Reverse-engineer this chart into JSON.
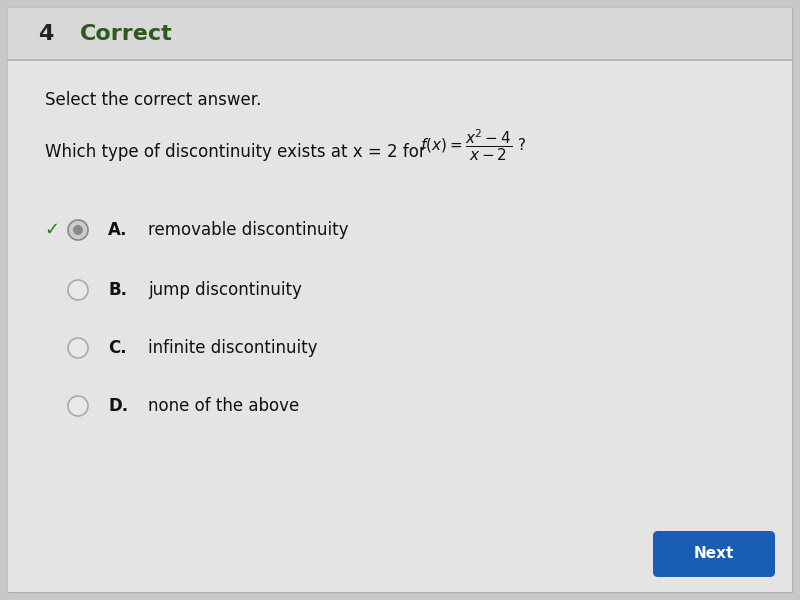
{
  "bg_outer": "#c8c8c8",
  "bg_header": "#d4d4d4",
  "bg_content": "#e2e2e2",
  "header_num": "4",
  "header_num_color": "#222222",
  "header_num_fontsize": 16,
  "header_label": "Correct",
  "header_label_color": "#2d5a1b",
  "header_label_fontsize": 16,
  "divider_color": "#b0b0b0",
  "subtitle": "Select the correct answer.",
  "subtitle_fontsize": 12,
  "question_prefix": "Which type of discontinuity exists at x = 2 for ",
  "question_fontsize": 12,
  "formula_fontsize": 11,
  "options": [
    {
      "letter": "A.",
      "text": "removable discontinuity",
      "selected": true,
      "correct": true
    },
    {
      "letter": "B.",
      "text": "jump discontinuity",
      "selected": false,
      "correct": false
    },
    {
      "letter": "C.",
      "text": "infinite discontinuity",
      "selected": false,
      "correct": false
    },
    {
      "letter": "D.",
      "text": "none of the above",
      "selected": false,
      "correct": false
    }
  ],
  "option_letter_fontsize": 12,
  "option_text_fontsize": 12,
  "checkmark_color": "#2d7d1a",
  "radio_border_selected": "#888888",
  "radio_fill_selected": "#cccccc",
  "radio_inner_selected": "#888888",
  "radio_border_unselected": "#aaaaaa",
  "radio_fill_unselected": "#e8e8e8",
  "next_button_color": "#1a5db5",
  "next_button_text": "Next",
  "next_button_text_color": "#ffffff",
  "next_button_fontsize": 11
}
